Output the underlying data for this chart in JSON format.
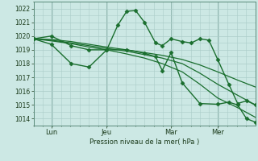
{
  "bg_color": "#cce8e4",
  "grid_color": "#aaccc8",
  "line_color": "#1a6e2e",
  "axis_label": "Pression niveau de la mer( hPa )",
  "ylim": [
    1013.5,
    1022.5
  ],
  "yticks": [
    1014,
    1015,
    1016,
    1017,
    1018,
    1019,
    1020,
    1021,
    1022
  ],
  "xtick_labels": [
    "Lun",
    "Jeu",
    "Mar",
    "Mer"
  ],
  "xtick_positions": [
    0.08,
    0.33,
    0.62,
    0.83
  ],
  "xlim": [
    0.0,
    1.0
  ],
  "series": [
    {
      "x": [
        0.0,
        0.08,
        0.17,
        0.25,
        0.33,
        0.42,
        0.5,
        0.58,
        0.67,
        0.75,
        0.83,
        0.92,
        1.0
      ],
      "y": [
        1019.8,
        1019.75,
        1019.6,
        1019.4,
        1019.2,
        1019.0,
        1018.8,
        1018.6,
        1018.3,
        1017.9,
        1017.4,
        1016.8,
        1016.3
      ],
      "marker": null,
      "lw": 0.9
    },
    {
      "x": [
        0.0,
        0.08,
        0.17,
        0.25,
        0.33,
        0.42,
        0.5,
        0.58,
        0.67,
        0.75,
        0.83,
        0.92,
        1.0
      ],
      "y": [
        1019.8,
        1019.7,
        1019.5,
        1019.3,
        1019.1,
        1018.9,
        1018.65,
        1018.4,
        1018.0,
        1017.3,
        1016.5,
        1015.7,
        1015.0
      ],
      "marker": null,
      "lw": 0.9
    },
    {
      "x": [
        0.0,
        0.08,
        0.17,
        0.25,
        0.33,
        0.42,
        0.5,
        0.58,
        0.67,
        0.75,
        0.83,
        0.92,
        1.0
      ],
      "y": [
        1019.8,
        1019.65,
        1019.45,
        1019.2,
        1019.0,
        1018.7,
        1018.4,
        1018.0,
        1017.4,
        1016.5,
        1015.5,
        1014.8,
        1014.1
      ],
      "marker": null,
      "lw": 0.9
    },
    {
      "x": [
        0.0,
        0.08,
        0.17,
        0.25,
        0.33,
        0.38,
        0.42,
        0.46,
        0.5,
        0.55,
        0.58,
        0.62,
        0.67,
        0.71,
        0.75,
        0.79,
        0.83,
        0.88,
        0.92,
        0.96,
        1.0
      ],
      "y": [
        1019.8,
        1020.0,
        1019.3,
        1019.0,
        1019.0,
        1020.8,
        1021.8,
        1021.85,
        1021.0,
        1019.5,
        1019.3,
        1019.8,
        1019.6,
        1019.5,
        1019.8,
        1019.7,
        1018.3,
        1016.5,
        1015.1,
        1015.3,
        1015.0
      ],
      "marker": "D",
      "ms": 2.5,
      "lw": 1.0
    },
    {
      "x": [
        0.0,
        0.08,
        0.17,
        0.25,
        0.33,
        0.42,
        0.5,
        0.55,
        0.58,
        0.62,
        0.67,
        0.75,
        0.83,
        0.88,
        0.92,
        0.96,
        1.0
      ],
      "y": [
        1019.8,
        1019.4,
        1018.0,
        1017.75,
        1019.0,
        1019.0,
        1018.75,
        1018.5,
        1017.5,
        1018.8,
        1016.6,
        1015.1,
        1015.05,
        1015.2,
        1015.0,
        1014.0,
        1013.75
      ],
      "marker": "D",
      "ms": 2.5,
      "lw": 1.0
    }
  ]
}
